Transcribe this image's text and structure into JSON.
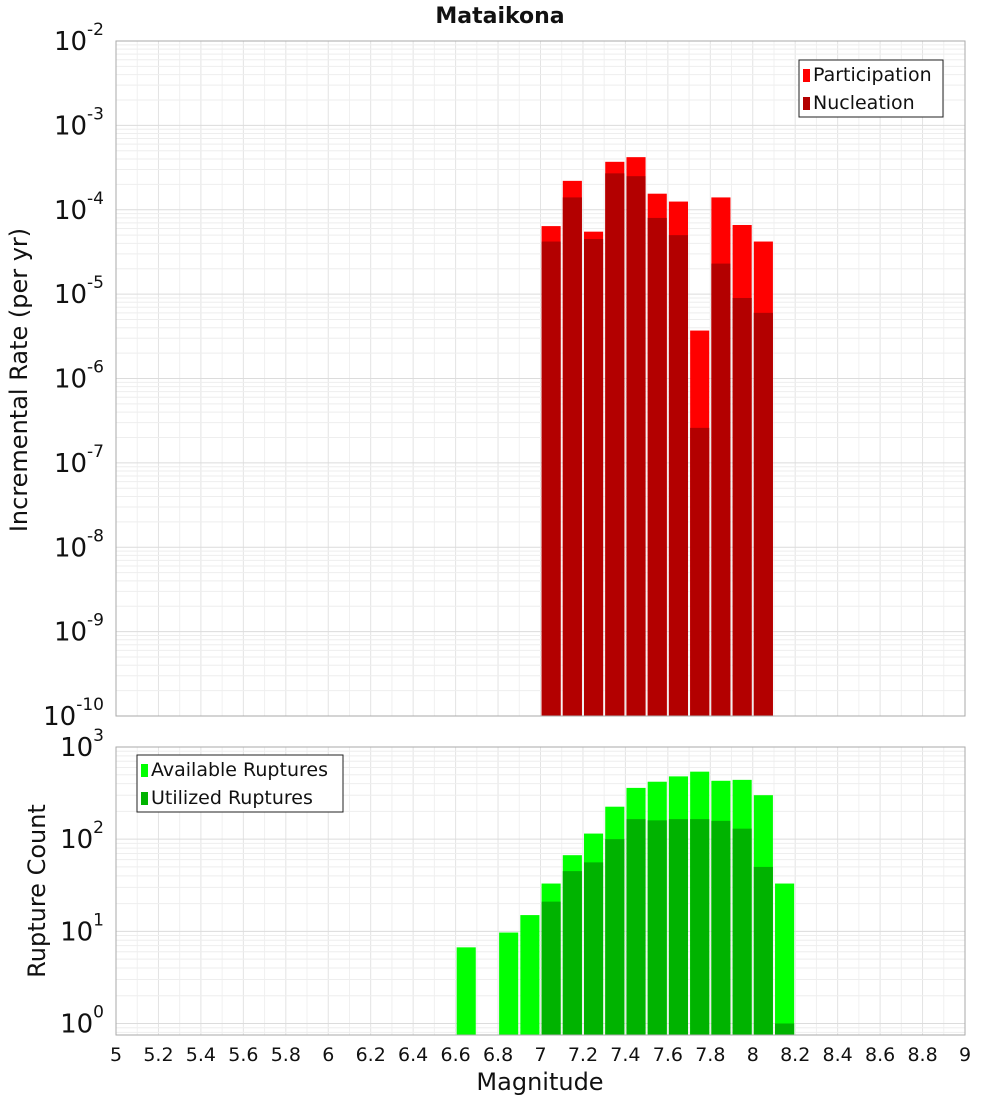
{
  "title": "Mataikona",
  "x_axis": {
    "label": "Magnitude",
    "range": [
      5,
      9
    ],
    "ticks": [
      "5",
      "5.2",
      "5.4",
      "5.6",
      "5.8",
      "6",
      "6.2",
      "6.4",
      "6.6",
      "6.8",
      "7",
      "7.2",
      "7.4",
      "7.6",
      "7.8",
      "8",
      "8.2",
      "8.4",
      "8.6",
      "8.8",
      "9"
    ]
  },
  "chart_data": [
    {
      "type": "bar",
      "scale": "log",
      "ylabel": "Incremental Rate (per yr)",
      "ylim": [
        1e-10,
        0.01
      ],
      "y_tick_exponents": [
        "-10",
        "-9",
        "-8",
        "-7",
        "-6",
        "-5",
        "-4",
        "-3",
        "-2"
      ],
      "y_tick_base": "10",
      "grid": true,
      "legend_position": "top-right",
      "bar_width": 0.09,
      "series": [
        {
          "name": "Participation",
          "color": "#ff0000",
          "x": [
            7.05,
            7.15,
            7.25,
            7.35,
            7.45,
            7.55,
            7.65,
            7.75,
            7.85,
            7.95,
            8.05
          ],
          "values": [
            6.4e-05,
            0.00022,
            5.5e-05,
            0.00037,
            0.00042,
            0.000155,
            0.000125,
            3.7e-06,
            0.00014,
            6.6e-05,
            4.2e-05
          ]
        },
        {
          "name": "Nucleation",
          "color": "#b30000",
          "x": [
            7.05,
            7.15,
            7.25,
            7.35,
            7.45,
            7.55,
            7.65,
            7.75,
            7.85,
            7.95,
            8.05
          ],
          "values": [
            4.2e-05,
            0.00014,
            4.5e-05,
            0.00027,
            0.00025,
            8e-05,
            5e-05,
            2.6e-07,
            2.3e-05,
            9e-06,
            6e-06
          ]
        }
      ]
    },
    {
      "type": "bar",
      "scale": "log",
      "ylabel": "Rupture Count",
      "ylim": [
        0.75,
        1000
      ],
      "y_tick_exponents": [
        "0",
        "1",
        "2",
        "3"
      ],
      "y_tick_base": "10",
      "grid": true,
      "legend_position": "top-left",
      "bar_width": 0.09,
      "series": [
        {
          "name": "Available Ruptures",
          "color": "#00ff00",
          "x": [
            6.65,
            6.85,
            6.95,
            7.05,
            7.15,
            7.25,
            7.35,
            7.45,
            7.55,
            7.65,
            7.75,
            7.85,
            7.95,
            8.05,
            8.15
          ],
          "values": [
            6.7,
            9.7,
            15,
            33,
            67,
            115,
            225,
            360,
            420,
            480,
            540,
            430,
            440,
            300,
            33
          ]
        },
        {
          "name": "Utilized Ruptures",
          "color": "#00b300",
          "x": [
            7.05,
            7.15,
            7.25,
            7.35,
            7.45,
            7.55,
            7.65,
            7.75,
            7.85,
            7.95,
            8.05,
            8.15
          ],
          "values": [
            21,
            45,
            56,
            100,
            165,
            160,
            165,
            165,
            158,
            130,
            50,
            1
          ]
        }
      ]
    }
  ]
}
